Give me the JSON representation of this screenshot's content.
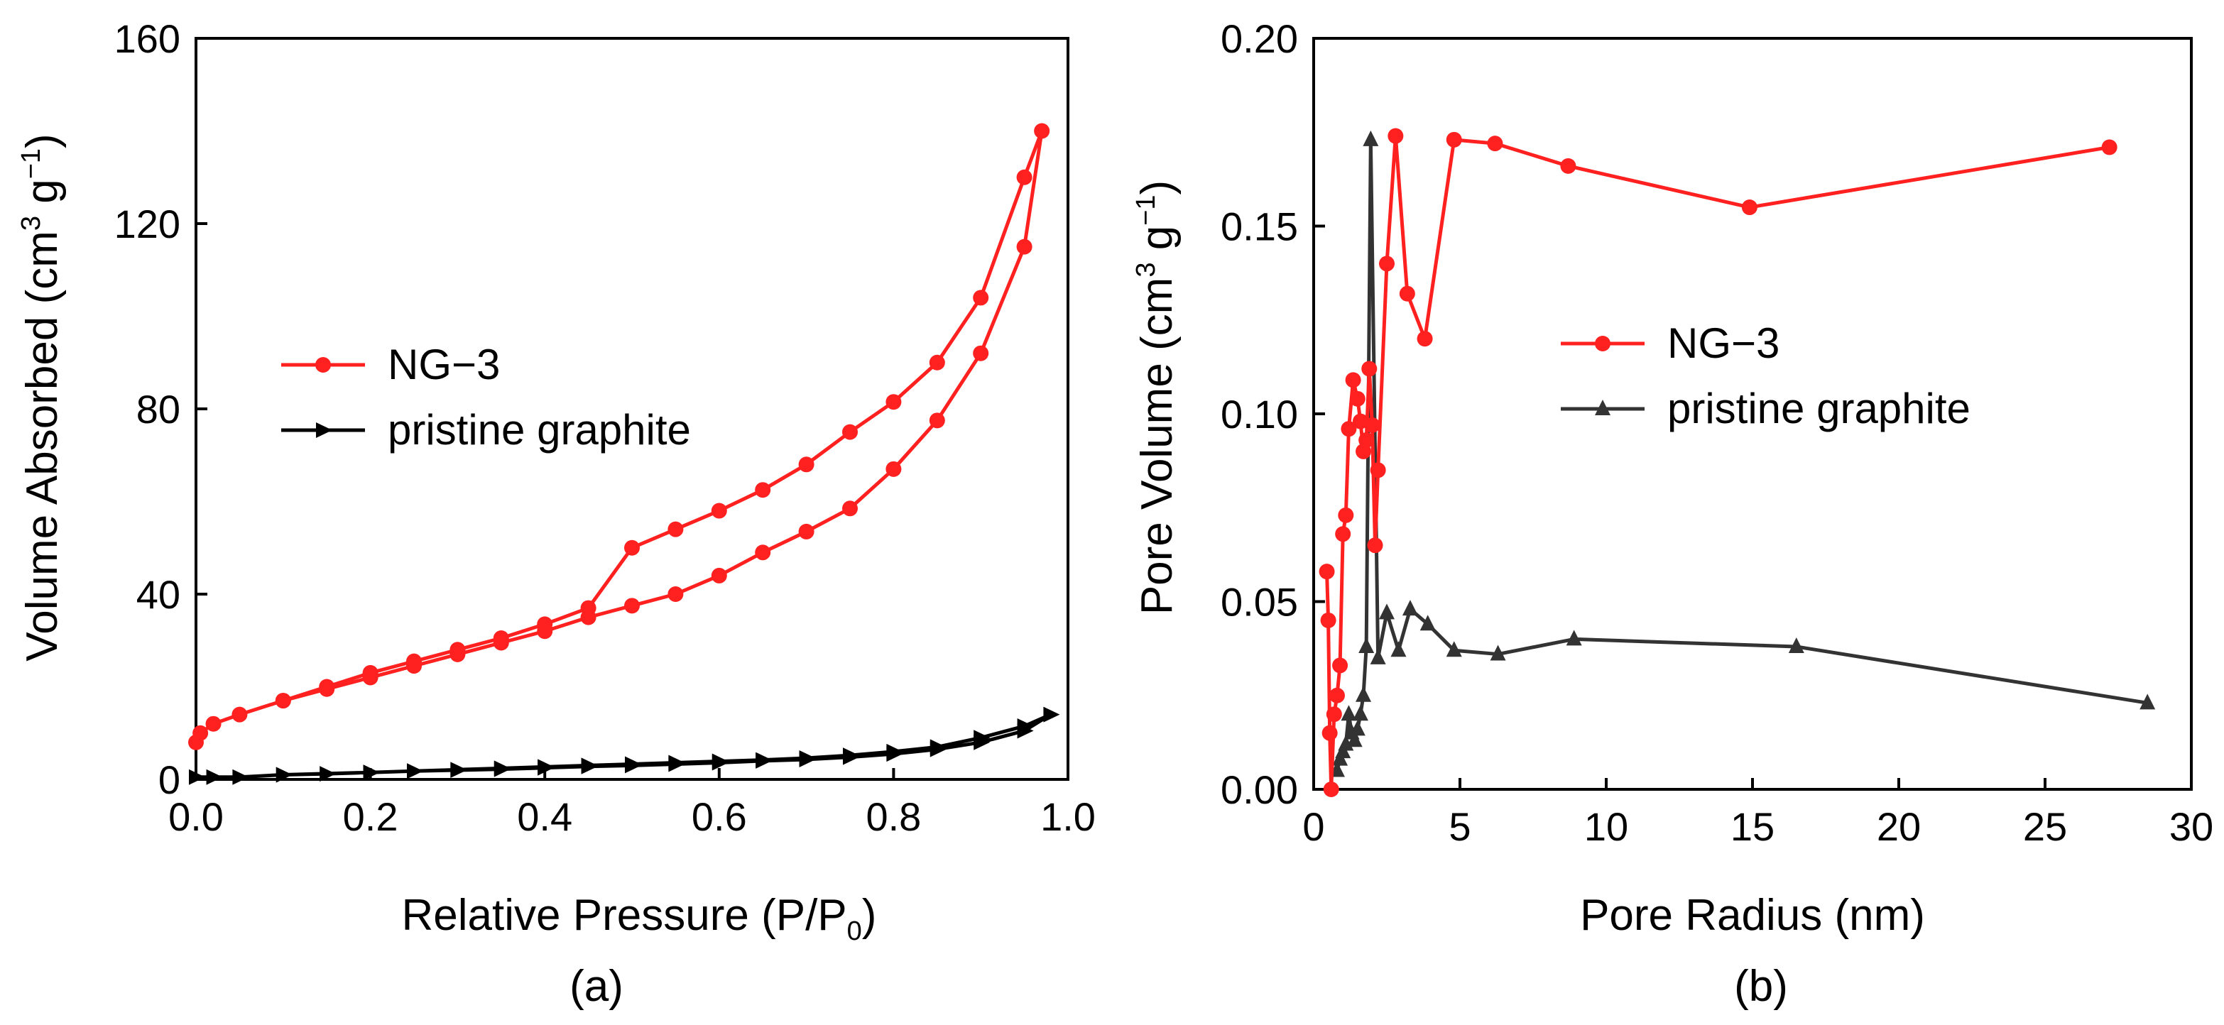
{
  "chart_data": [
    {
      "type": "line",
      "panel_label": "(a)",
      "xlabel": "Relative Pressure (P/P",
      "xlabel_sub": "0",
      "xlabel_end": ")",
      "ylabel": "Volume Absorbed (cm",
      "ylabel_sup1": "3",
      "ylabel_mid": " g",
      "ylabel_sup2": "−1",
      "ylabel_end": ")",
      "xlim": [
        0,
        1
      ],
      "ylim": [
        0,
        160
      ],
      "xticks": [
        "0.0",
        "0.2",
        "0.4",
        "0.6",
        "0.8",
        "1.0"
      ],
      "xtick_values": [
        0,
        0.2,
        0.4,
        0.6,
        0.8,
        1.0
      ],
      "yticks": [
        "0",
        "40",
        "80",
        "120",
        "160"
      ],
      "ytick_values": [
        0,
        40,
        80,
        120,
        160
      ],
      "legend_position": "center-left",
      "series": [
        {
          "name": "NG−3",
          "color": "#ff2020",
          "marker": "circle",
          "x": [
            0.0,
            0.005,
            0.02,
            0.05,
            0.1,
            0.15,
            0.2,
            0.25,
            0.3,
            0.35,
            0.4,
            0.45,
            0.5,
            0.55,
            0.6,
            0.65,
            0.7,
            0.75,
            0.8,
            0.85,
            0.9,
            0.95,
            0.97,
            0.95,
            0.9,
            0.85,
            0.8,
            0.75,
            0.7,
            0.65,
            0.6,
            0.55,
            0.5,
            0.45,
            0.4,
            0.35,
            0.3,
            0.25,
            0.2,
            0.15,
            0.1
          ],
          "y": [
            8,
            10,
            12,
            14,
            17,
            19.5,
            22,
            24.5,
            27,
            29.5,
            32,
            35,
            37.5,
            40,
            44,
            49,
            53.5,
            58.5,
            67,
            77.5,
            92,
            115,
            140,
            130,
            104,
            90,
            81.5,
            75,
            68,
            62.5,
            58,
            54,
            50,
            37,
            33.5,
            30.5,
            28,
            25.5,
            23,
            20,
            17
          ]
        },
        {
          "name": "pristine graphite",
          "color": "#000000",
          "marker": "triangle-right",
          "x": [
            0.0,
            0.02,
            0.05,
            0.1,
            0.15,
            0.2,
            0.25,
            0.3,
            0.35,
            0.4,
            0.45,
            0.5,
            0.55,
            0.6,
            0.65,
            0.7,
            0.75,
            0.8,
            0.85,
            0.9,
            0.95,
            0.98,
            0.95,
            0.9,
            0.85,
            0.8,
            0.75,
            0.7,
            0.65,
            0.6,
            0.55,
            0.5,
            0.45,
            0.4,
            0.35,
            0.3,
            0.25,
            0.2,
            0.1
          ],
          "y": [
            0.5,
            0.5,
            0.5,
            1,
            1.2,
            1.5,
            1.8,
            2,
            2.2,
            2.5,
            2.8,
            3,
            3.3,
            3.6,
            4,
            4.3,
            4.8,
            5.5,
            6.5,
            8,
            10.5,
            14,
            11.5,
            9,
            7,
            6,
            5.2,
            4.6,
            4.2,
            3.9,
            3.6,
            3.3,
            3,
            2.7,
            2.4,
            2.1,
            1.8,
            1.5,
            1
          ]
        }
      ]
    },
    {
      "type": "line",
      "panel_label": "(b)",
      "xlabel": "Pore Radius (nm)",
      "ylabel": "Pore Volume (cm",
      "ylabel_sup1": "3",
      "ylabel_mid": " g",
      "ylabel_sup2": "−1",
      "ylabel_end": ")",
      "xlim": [
        0,
        30
      ],
      "ylim": [
        0,
        0.2
      ],
      "xticks": [
        "0",
        "5",
        "10",
        "15",
        "20",
        "25",
        "30"
      ],
      "xtick_values": [
        0,
        5,
        10,
        15,
        20,
        25,
        30
      ],
      "yticks": [
        "0.00",
        "0.05",
        "0.10",
        "0.15",
        "0.20"
      ],
      "ytick_values": [
        0,
        0.05,
        0.1,
        0.15,
        0.2
      ],
      "legend_position": "center-right",
      "series": [
        {
          "name": "NG−3",
          "color": "#ff2020",
          "marker": "circle",
          "x": [
            0.45,
            0.5,
            0.55,
            0.6,
            0.7,
            0.8,
            0.9,
            1.0,
            1.1,
            1.2,
            1.35,
            1.5,
            1.6,
            1.7,
            1.8,
            1.9,
            2.0,
            2.1,
            2.2,
            2.5,
            2.8,
            3.2,
            3.8,
            4.8,
            6.2,
            8.7,
            14.9,
            27.2
          ],
          "y": [
            0.058,
            0.045,
            0.015,
            0.0,
            0.02,
            0.025,
            0.033,
            0.068,
            0.073,
            0.096,
            0.109,
            0.104,
            0.098,
            0.09,
            0.093,
            0.112,
            0.097,
            0.065,
            0.085,
            0.14,
            0.174,
            0.132,
            0.12,
            0.173,
            0.172,
            0.166,
            0.155,
            0.171
          ]
        },
        {
          "name": "pristine graphite",
          "color": "#333333",
          "marker": "triangle-up",
          "x": [
            0.8,
            0.9,
            1.0,
            1.1,
            1.2,
            1.3,
            1.4,
            1.5,
            1.6,
            1.7,
            1.8,
            1.95,
            2.2,
            2.5,
            2.9,
            3.3,
            3.9,
            4.8,
            6.3,
            8.9,
            16.5,
            28.5
          ],
          "y": [
            0.005,
            0.008,
            0.01,
            0.012,
            0.02,
            0.015,
            0.013,
            0.016,
            0.02,
            0.025,
            0.038,
            0.173,
            0.035,
            0.047,
            0.037,
            0.048,
            0.044,
            0.037,
            0.036,
            0.04,
            0.038,
            0.023
          ]
        }
      ]
    }
  ]
}
